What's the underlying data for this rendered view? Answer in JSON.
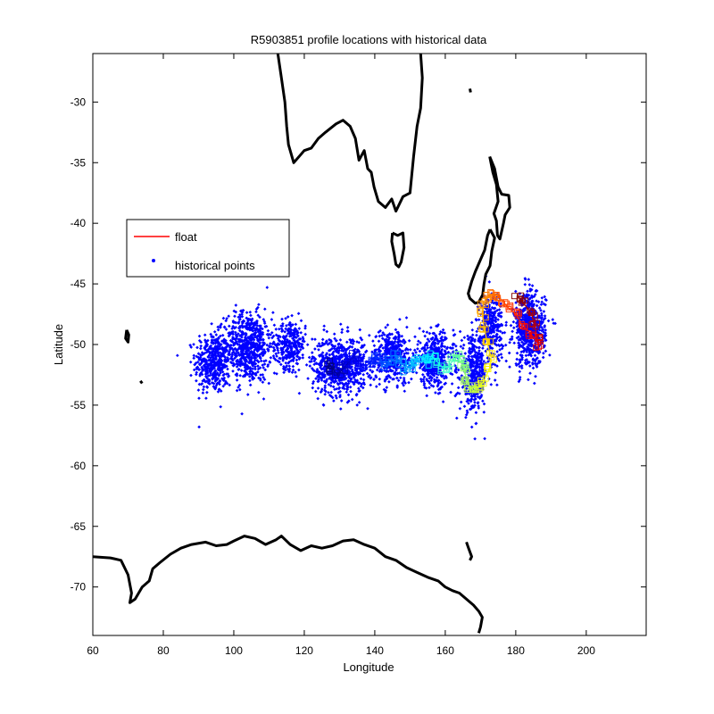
{
  "chart_data": {
    "type": "scatter",
    "title": "R5903851 profile locations with historical data",
    "xlabel": "Longitude",
    "ylabel": "Latitude",
    "xlim": [
      60,
      217
    ],
    "ylim": [
      -74,
      -26
    ],
    "xticks": [
      60,
      80,
      100,
      120,
      140,
      160,
      180,
      200
    ],
    "yticks": [
      -30,
      -35,
      -40,
      -45,
      -50,
      -55,
      -60,
      -65,
      -70
    ],
    "grid": false,
    "legend": {
      "position": "upper-left",
      "entries": [
        {
          "label": "float",
          "color": "#ff0000",
          "marker": "line"
        },
        {
          "label": "historical points",
          "color": "#0000ff",
          "marker": "dot"
        }
      ]
    },
    "series": [
      {
        "name": "float",
        "color_scale": "jet (blue to red, early to late profiles)",
        "points": [
          [
            180.5,
            -46.0
          ],
          [
            182.0,
            -46.5
          ],
          [
            184.5,
            -47.5
          ],
          [
            185.5,
            -48.5
          ],
          [
            186.0,
            -49.5
          ],
          [
            186.5,
            -50.0
          ],
          [
            184.0,
            -49.0
          ],
          [
            182.0,
            -48.5
          ],
          [
            180.0,
            -47.5
          ],
          [
            178.0,
            -47.0
          ],
          [
            176.5,
            -46.5
          ],
          [
            175.0,
            -46.0
          ],
          [
            173.5,
            -45.8
          ],
          [
            172.0,
            -46.0
          ],
          [
            171.0,
            -46.5
          ],
          [
            170.5,
            -47.5
          ],
          [
            171.0,
            -48.5
          ],
          [
            172.0,
            -50.0
          ],
          [
            173.0,
            -51.0
          ],
          [
            172.5,
            -52.0
          ],
          [
            171.0,
            -53.0
          ],
          [
            169.5,
            -53.5
          ],
          [
            168.0,
            -53.8
          ],
          [
            167.0,
            -53.5
          ],
          [
            166.0,
            -53.0
          ],
          [
            165.5,
            -52.0
          ],
          [
            165.0,
            -51.5
          ],
          [
            164.0,
            -51.0
          ],
          [
            162.5,
            -51.2
          ],
          [
            161.0,
            -51.8
          ],
          [
            159.5,
            -52.0
          ],
          [
            158.0,
            -51.5
          ],
          [
            156.5,
            -51.0
          ],
          [
            155.0,
            -51.5
          ],
          [
            153.5,
            -51.0
          ],
          [
            152.0,
            -51.2
          ],
          [
            150.5,
            -51.8
          ],
          [
            149.0,
            -52.0
          ],
          [
            147.5,
            -51.5
          ],
          [
            146.0,
            -51.0
          ],
          [
            144.5,
            -51.5
          ],
          [
            143.0,
            -51.8
          ],
          [
            141.5,
            -51.2
          ],
          [
            140.0,
            -51.0
          ],
          [
            138.5,
            -51.5
          ],
          [
            137.0,
            -52.0
          ],
          [
            135.5,
            -51.5
          ],
          [
            134.0,
            -51.0
          ],
          [
            132.5,
            -51.5
          ],
          [
            131.0,
            -52.0
          ],
          [
            129.5,
            -52.5
          ],
          [
            128.0,
            -52.0
          ],
          [
            127.0,
            -51.5
          ]
        ]
      },
      {
        "name": "historical points",
        "color": "#0000ff",
        "clusters": [
          {
            "center": [
              94,
              -51.5
            ],
            "spread": [
              4.5,
              2.3
            ],
            "count": 420
          },
          {
            "center": [
              104,
              -50.2
            ],
            "spread": [
              6,
              2.6
            ],
            "count": 650
          },
          {
            "center": [
              116,
              -50.0
            ],
            "spread": [
              4,
              1.8
            ],
            "count": 280
          },
          {
            "center": [
              130,
              -51.8
            ],
            "spread": [
              7,
              2.2
            ],
            "count": 650
          },
          {
            "center": [
              145,
              -51.0
            ],
            "spread": [
              5.5,
              2.0
            ],
            "count": 420
          },
          {
            "center": [
              157,
              -51.3
            ],
            "spread": [
              5,
              2.0
            ],
            "count": 420
          },
          {
            "center": [
              168,
              -52.5
            ],
            "spread": [
              3.5,
              2.8
            ],
            "count": 400
          },
          {
            "center": [
              173,
              -48.5
            ],
            "spread": [
              3,
              2.5
            ],
            "count": 300
          },
          {
            "center": [
              184,
              -48.8
            ],
            "spread": [
              4,
              2.8
            ],
            "count": 620
          }
        ]
      },
      {
        "name": "coastline",
        "color": "#000000",
        "lines": [
          [
            [
              112.5,
              -26.0
            ],
            [
              113.5,
              -28.0
            ],
            [
              114.5,
              -30.0
            ],
            [
              115.0,
              -32.0
            ],
            [
              115.5,
              -33.5
            ],
            [
              117.0,
              -35.0
            ],
            [
              120.0,
              -34.0
            ],
            [
              122.0,
              -33.8
            ],
            [
              124.0,
              -33.0
            ],
            [
              126.0,
              -32.5
            ],
            [
              129.0,
              -31.8
            ],
            [
              131.0,
              -31.5
            ],
            [
              133.0,
              -32.0
            ],
            [
              134.5,
              -33.0
            ],
            [
              135.5,
              -34.8
            ],
            [
              137.0,
              -34.0
            ],
            [
              138.0,
              -35.5
            ],
            [
              139.0,
              -35.8
            ],
            [
              139.8,
              -37.0
            ],
            [
              141.0,
              -38.2
            ],
            [
              143.0,
              -38.7
            ],
            [
              144.8,
              -38.0
            ],
            [
              146.0,
              -39.0
            ],
            [
              148.0,
              -37.8
            ],
            [
              150.0,
              -37.5
            ],
            [
              150.5,
              -36.0
            ],
            [
              151.0,
              -34.5
            ],
            [
              152.0,
              -32.0
            ],
            [
              153.0,
              -30.5
            ],
            [
              153.5,
              -28.0
            ],
            [
              153.0,
              -26.0
            ]
          ],
          [
            [
              145.0,
              -40.8
            ],
            [
              146.5,
              -41.0
            ],
            [
              148.0,
              -40.8
            ],
            [
              148.3,
              -42.0
            ],
            [
              147.5,
              -43.2
            ],
            [
              146.8,
              -43.6
            ],
            [
              146.0,
              -43.4
            ],
            [
              145.5,
              -42.5
            ],
            [
              144.8,
              -41.5
            ],
            [
              145.0,
              -40.8
            ]
          ],
          [
            [
              172.6,
              -34.5
            ],
            [
              174.0,
              -35.5
            ],
            [
              175.0,
              -37.0
            ],
            [
              176.0,
              -37.6
            ],
            [
              178.0,
              -37.7
            ],
            [
              178.3,
              -38.7
            ],
            [
              177.0,
              -39.3
            ],
            [
              176.5,
              -40.0
            ],
            [
              175.5,
              -41.3
            ],
            [
              174.8,
              -41.0
            ],
            [
              174.5,
              -39.8
            ],
            [
              173.8,
              -39.2
            ],
            [
              175.0,
              -38.2
            ],
            [
              174.5,
              -36.8
            ],
            [
              173.5,
              -35.8
            ],
            [
              172.6,
              -34.5
            ]
          ],
          [
            [
              172.7,
              -40.5
            ],
            [
              174.0,
              -41.2
            ],
            [
              173.2,
              -42.3
            ],
            [
              172.7,
              -43.5
            ],
            [
              171.5,
              -44.2
            ],
            [
              171.0,
              -45.0
            ],
            [
              170.6,
              -45.9
            ],
            [
              169.5,
              -46.5
            ],
            [
              168.5,
              -46.6
            ],
            [
              167.0,
              -46.2
            ],
            [
              166.5,
              -45.8
            ],
            [
              167.5,
              -44.8
            ],
            [
              168.5,
              -44.0
            ],
            [
              170.0,
              -43.0
            ],
            [
              171.2,
              -42.2
            ],
            [
              172.0,
              -41.0
            ],
            [
              172.7,
              -40.5
            ]
          ],
          [
            [
              60.0,
              -67.5
            ],
            [
              65.0,
              -67.6
            ],
            [
              68.0,
              -67.8
            ],
            [
              70.0,
              -69.0
            ],
            [
              71.0,
              -70.5
            ],
            [
              70.5,
              -71.3
            ],
            [
              72.0,
              -71.0
            ],
            [
              74.0,
              -70.0
            ],
            [
              76.0,
              -69.5
            ],
            [
              77.0,
              -68.5
            ],
            [
              79.0,
              -68.0
            ],
            [
              82.0,
              -67.3
            ],
            [
              85.0,
              -66.8
            ],
            [
              88.0,
              -66.5
            ],
            [
              92.0,
              -66.3
            ],
            [
              95.0,
              -66.6
            ],
            [
              98.0,
              -66.5
            ],
            [
              100.0,
              -66.2
            ],
            [
              103.0,
              -65.8
            ],
            [
              106.0,
              -66.0
            ],
            [
              109.0,
              -66.5
            ],
            [
              112.0,
              -66.1
            ],
            [
              113.5,
              -65.8
            ],
            [
              116.0,
              -66.5
            ],
            [
              119.0,
              -67.0
            ],
            [
              122.0,
              -66.6
            ],
            [
              125.0,
              -66.8
            ],
            [
              128.0,
              -66.6
            ],
            [
              131.0,
              -66.2
            ],
            [
              134.0,
              -66.1
            ],
            [
              137.0,
              -66.5
            ],
            [
              140.0,
              -66.8
            ],
            [
              143.0,
              -67.5
            ],
            [
              146.0,
              -67.8
            ],
            [
              149.0,
              -68.4
            ],
            [
              152.0,
              -68.8
            ],
            [
              155.0,
              -69.2
            ],
            [
              158.0,
              -69.5
            ],
            [
              160.0,
              -70.0
            ],
            [
              162.0,
              -70.3
            ],
            [
              164.0,
              -70.5
            ],
            [
              166.0,
              -71.0
            ],
            [
              168.0,
              -71.5
            ],
            [
              169.5,
              -72.0
            ],
            [
              170.5,
              -72.5
            ],
            [
              170.0,
              -73.3
            ],
            [
              169.5,
              -73.8
            ]
          ],
          [
            [
              69.6,
              -48.8
            ],
            [
              70.2,
              -49.2
            ],
            [
              70.0,
              -49.8
            ],
            [
              69.3,
              -49.5
            ],
            [
              69.6,
              -48.8
            ]
          ],
          [
            [
              73.5,
              -53.0
            ],
            [
              74.0,
              -53.2
            ]
          ],
          [
            [
              166.0,
              -66.3
            ],
            [
              166.6,
              -66.8
            ],
            [
              167.5,
              -67.5
            ],
            [
              167.0,
              -67.8
            ]
          ],
          [
            [
              167.0,
              -28.9
            ],
            [
              167.2,
              -29.2
            ]
          ]
        ]
      }
    ]
  }
}
